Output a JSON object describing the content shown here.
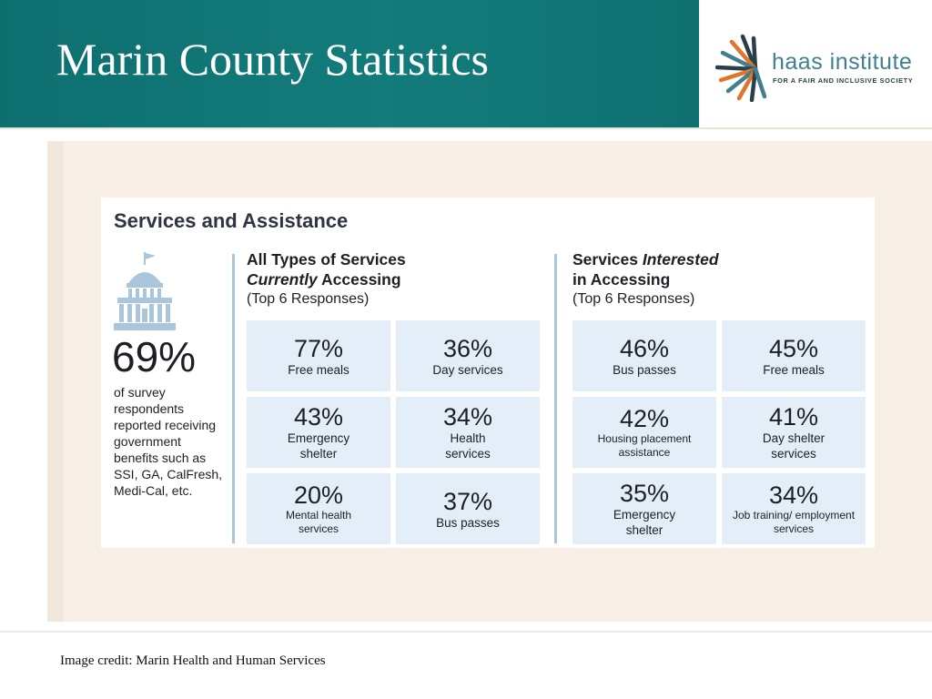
{
  "slide": {
    "title": "Marin County Statistics",
    "credit": "Image credit: Marin Health and Human Services"
  },
  "logo": {
    "name": "haas institute",
    "tagline": "FOR A FAIR AND INCLUSIVE SOCIETY"
  },
  "infographic": {
    "title": "Services and Assistance",
    "icon": "capitol-building-icon",
    "headline_pct": "69%",
    "headline_desc": "of survey respondents reported receiving government benefits such as SSI, GA, CalFresh, Medi-Cal, etc.",
    "current": {
      "heading_line1": "All Types of Services",
      "heading_em": "Currently",
      "heading_rest": " Accessing",
      "sub": "(Top 6 Responses)",
      "tiles": [
        {
          "pct": "77%",
          "label": "Free meals"
        },
        {
          "pct": "36%",
          "label": "Day services"
        },
        {
          "pct": "43%",
          "label": "Emergency shelter"
        },
        {
          "pct": "34%",
          "label": "Health services"
        },
        {
          "pct": "20%",
          "label": "Mental health services"
        },
        {
          "pct": "37%",
          "label": "Bus passes"
        }
      ]
    },
    "interested": {
      "heading_pre": "Services ",
      "heading_em": "Interested",
      "heading_line2": "in Accessing",
      "sub": "(Top 6 Responses)",
      "tiles": [
        {
          "pct": "46%",
          "label": "Bus passes"
        },
        {
          "pct": "45%",
          "label": "Free meals"
        },
        {
          "pct": "42%",
          "label": "Housing placement assistance"
        },
        {
          "pct": "41%",
          "label": "Day shelter services"
        },
        {
          "pct": "35%",
          "label": "Emergency shelter"
        },
        {
          "pct": "34%",
          "label": "Job training/ employment services"
        }
      ]
    }
  },
  "colors": {
    "header_teal": "#137b7b",
    "tile_blue": "#e3eef8",
    "divider_blue": "#a9c6dc",
    "canvas_beige": "#f7efe6"
  }
}
